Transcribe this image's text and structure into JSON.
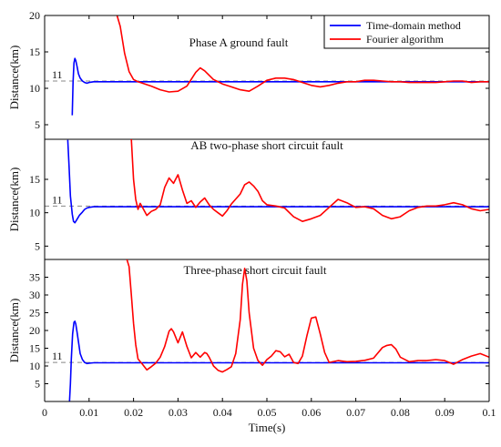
{
  "chart_data": {
    "type": "line",
    "shared_x_axis": {
      "xlabel": "Time(s)",
      "xlim": [
        0,
        0.1
      ],
      "x_ticks": [
        0,
        0.01,
        0.02,
        0.03,
        0.04,
        0.05,
        0.06,
        0.07,
        0.08,
        0.09,
        0.1
      ],
      "x_tick_labels": [
        "0",
        "0.01",
        "0.02",
        "0.03",
        "0.04",
        "0.05",
        "0.06",
        "0.07",
        "0.08",
        "0.09",
        "0.1"
      ]
    },
    "legend": {
      "placement": "top-right",
      "entries": [
        {
          "name": "Time-domain method",
          "color": "#0000ff"
        },
        {
          "name": "Fourier algorithm",
          "color": "#ff0000"
        }
      ]
    },
    "panels": [
      {
        "title": "Phase A ground fault",
        "ylabel": "Distance(km)",
        "ylim": [
          3,
          20
        ],
        "y_ticks": [
          5,
          10,
          15,
          20
        ],
        "y_tick_labels": [
          "5",
          "10",
          "15",
          "20"
        ],
        "reference": {
          "value": 11,
          "label": "11"
        },
        "series": [
          {
            "name": "Time-domain method",
            "color": "#0000ff",
            "x": [
              0.0062,
              0.0064,
              0.0066,
              0.0068,
              0.007,
              0.0073,
              0.0076,
              0.008,
              0.0085,
              0.009,
              0.0095,
              0.01,
              0.011,
              0.1
            ],
            "y": [
              6.3,
              10.8,
              13.5,
              14.1,
              13.8,
              13.0,
              12.0,
              11.4,
              11.0,
              10.8,
              10.7,
              10.8,
              10.9,
              10.9
            ]
          },
          {
            "name": "Fourier algorithm",
            "color": "#ff0000",
            "x": [
              0.0163,
              0.017,
              0.018,
              0.019,
              0.02,
              0.021,
              0.022,
              0.024,
              0.026,
              0.028,
              0.03,
              0.032,
              0.034,
              0.035,
              0.036,
              0.038,
              0.04,
              0.042,
              0.044,
              0.046,
              0.048,
              0.05,
              0.052,
              0.054,
              0.056,
              0.058,
              0.06,
              0.062,
              0.064,
              0.066,
              0.068,
              0.07,
              0.072,
              0.074,
              0.076,
              0.078,
              0.08,
              0.082,
              0.084,
              0.086,
              0.088,
              0.09,
              0.092,
              0.094,
              0.096,
              0.098,
              0.1
            ],
            "y": [
              20,
              18.5,
              14.8,
              12.3,
              11.2,
              10.9,
              10.7,
              10.3,
              9.8,
              9.5,
              9.6,
              10.3,
              12.2,
              12.8,
              12.4,
              11.2,
              10.6,
              10.2,
              9.8,
              9.6,
              10.3,
              11.1,
              11.4,
              11.4,
              11.2,
              10.8,
              10.4,
              10.2,
              10.4,
              10.7,
              10.9,
              10.9,
              11.1,
              11.1,
              11.0,
              10.9,
              10.9,
              10.8,
              10.8,
              10.8,
              10.8,
              10.9,
              11.0,
              11.0,
              10.8,
              10.9,
              10.9
            ]
          }
        ]
      },
      {
        "title": "AB two-phase short circuit fault",
        "ylabel": "Distance(km)",
        "ylim": [
          3,
          21
        ],
        "y_ticks": [
          5,
          10,
          15
        ],
        "y_tick_labels": [
          "5",
          "10",
          "15"
        ],
        "reference": {
          "value": 11,
          "label": "11"
        },
        "series": [
          {
            "name": "Time-domain method",
            "color": "#0000ff",
            "x": [
              0.0052,
              0.0055,
              0.0058,
              0.0062,
              0.0065,
              0.0068,
              0.0072,
              0.0078,
              0.0085,
              0.009,
              0.0095,
              0.01,
              0.011,
              0.1
            ],
            "y": [
              20.9,
              17.0,
              12.5,
              9.8,
              8.7,
              8.5,
              8.9,
              9.6,
              10.1,
              10.5,
              10.7,
              10.8,
              10.9,
              10.9
            ]
          },
          {
            "name": "Fourier algorithm",
            "color": "#ff0000",
            "x": [
              0.0195,
              0.02,
              0.0205,
              0.021,
              0.0215,
              0.022,
              0.023,
              0.024,
              0.025,
              0.026,
              0.027,
              0.028,
              0.029,
              0.03,
              0.031,
              0.032,
              0.033,
              0.034,
              0.035,
              0.036,
              0.037,
              0.038,
              0.039,
              0.04,
              0.041,
              0.042,
              0.044,
              0.045,
              0.046,
              0.047,
              0.048,
              0.049,
              0.05,
              0.052,
              0.054,
              0.056,
              0.058,
              0.06,
              0.062,
              0.064,
              0.066,
              0.068,
              0.07,
              0.072,
              0.074,
              0.076,
              0.078,
              0.08,
              0.082,
              0.084,
              0.086,
              0.088,
              0.09,
              0.092,
              0.094,
              0.096,
              0.098,
              0.1
            ],
            "y": [
              21,
              15,
              12,
              10.5,
              11.4,
              10.8,
              9.6,
              10.2,
              10.5,
              11.2,
              13.8,
              15.2,
              14.4,
              15.7,
              13.4,
              11.4,
              11.8,
              10.8,
              11.6,
              12.2,
              11.2,
              10.5,
              10.0,
              9.5,
              10.3,
              11.3,
              12.8,
              14.2,
              14.6,
              14.0,
              13.2,
              11.8,
              11.2,
              11.0,
              10.7,
              9.4,
              8.7,
              9.1,
              9.6,
              10.8,
              12.0,
              11.5,
              10.8,
              10.9,
              10.6,
              9.6,
              9.1,
              9.4,
              10.3,
              10.8,
              11.0,
              11.0,
              11.2,
              11.5,
              11.2,
              10.6,
              10.3,
              10.5
            ]
          }
        ]
      },
      {
        "title": "Three-phase short circuit fault",
        "ylabel": "Distance(km)",
        "ylim": [
          0,
          40
        ],
        "y_ticks": [
          5,
          10,
          15,
          20,
          25,
          30,
          35
        ],
        "y_tick_labels": [
          "5",
          "10",
          "15",
          "20",
          "25",
          "30",
          "35"
        ],
        "reference": {
          "value": 11,
          "label": "11"
        },
        "series": [
          {
            "name": "Time-domain method",
            "color": "#0000ff",
            "x": [
              0.0056,
              0.0058,
              0.006,
              0.0063,
              0.0066,
              0.0068,
              0.007,
              0.0073,
              0.0077,
              0.008,
              0.0085,
              0.009,
              0.0095,
              0.01,
              0.011,
              0.1
            ],
            "y": [
              0,
              5,
              12,
              19,
              22.3,
              22.6,
              21.8,
              19.5,
              16.0,
              13.5,
              11.8,
              11.0,
              10.7,
              10.8,
              10.9,
              10.9
            ]
          },
          {
            "name": "Fourier algorithm",
            "color": "#ff0000",
            "x": [
              0.0185,
              0.019,
              0.0195,
              0.02,
              0.0205,
              0.021,
              0.022,
              0.023,
              0.024,
              0.025,
              0.026,
              0.027,
              0.028,
              0.0285,
              0.029,
              0.03,
              0.031,
              0.032,
              0.033,
              0.034,
              0.035,
              0.036,
              0.0365,
              0.037,
              0.038,
              0.039,
              0.04,
              0.041,
              0.042,
              0.043,
              0.044,
              0.0445,
              0.045,
              0.0455,
              0.046,
              0.047,
              0.048,
              0.049,
              0.05,
              0.051,
              0.052,
              0.053,
              0.054,
              0.055,
              0.056,
              0.057,
              0.058,
              0.059,
              0.06,
              0.061,
              0.062,
              0.063,
              0.064,
              0.066,
              0.068,
              0.07,
              0.072,
              0.074,
              0.076,
              0.077,
              0.078,
              0.079,
              0.08,
              0.082,
              0.084,
              0.086,
              0.088,
              0.09,
              0.092,
              0.094,
              0.096,
              0.098,
              0.1
            ],
            "y": [
              40,
              38,
              30,
              22,
              16,
              12,
              10.5,
              8.9,
              9.8,
              10.8,
              12.5,
              15.5,
              19.8,
              20.5,
              19.6,
              16.5,
              19.6,
              15.5,
              12.3,
              13.8,
              12.5,
              13.8,
              13.5,
              12.5,
              10.0,
              8.8,
              8.3,
              9.0,
              9.8,
              13.5,
              23.0,
              33.0,
              37.5,
              34.0,
              25.0,
              15.0,
              11.5,
              10.2,
              11.8,
              12.8,
              14.3,
              14.0,
              12.6,
              13.3,
              11.0,
              10.7,
              12.8,
              18.5,
              23.5,
              23.8,
              19.0,
              13.8,
              11.0,
              11.5,
              11.2,
              11.3,
              11.6,
              12.2,
              15.2,
              15.8,
              16.0,
              14.8,
              12.5,
              11.2,
              11.5,
              11.5,
              11.8,
              11.5,
              10.5,
              11.8,
              12.8,
              13.5,
              12.5
            ]
          }
        ]
      }
    ]
  }
}
